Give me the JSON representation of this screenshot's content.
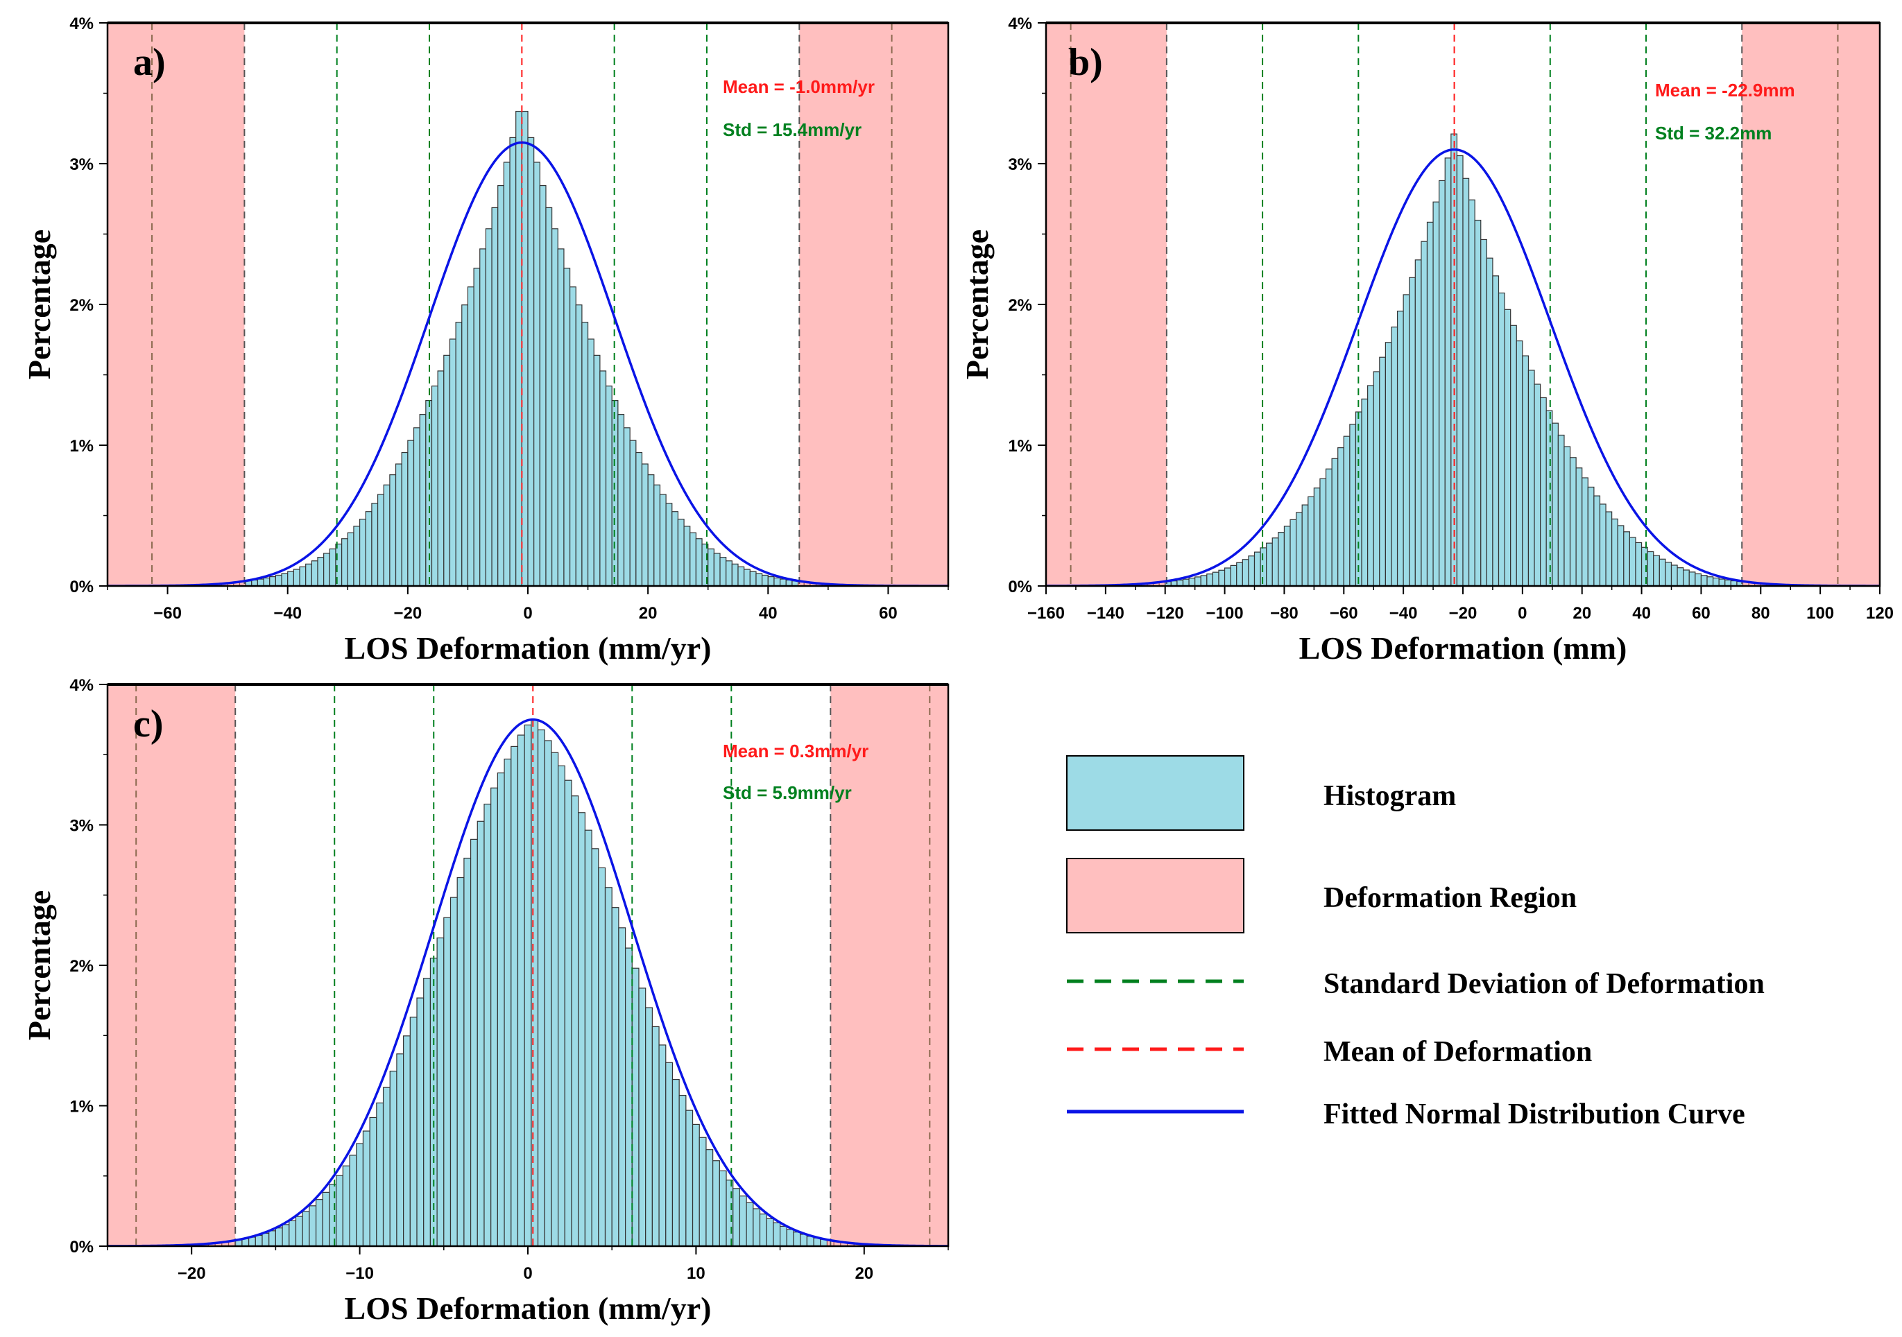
{
  "colors": {
    "histogram": "#9ddbe6",
    "histogram_edge": "#333333",
    "region": "#ffbfbf",
    "std_line": "#00801f",
    "mean_line": "#ff1a1a",
    "curve": "#0a14e6",
    "region_edge": "#8c6a50"
  },
  "legend": {
    "histogram": "Histogram",
    "region": "Deformation Region",
    "std": "Standard Deviation of Deformation",
    "mean": "Mean of Deformation",
    "curve": "Fitted Normal Distribution Curve"
  },
  "chart_data": [
    {
      "type": "bar",
      "panel": "a)",
      "xlabel": "LOS Deformation (mm/yr)",
      "ylabel": "Percentage",
      "xlim": [
        -70,
        70
      ],
      "ylim": [
        0,
        4
      ],
      "xticks": [
        -60,
        -40,
        -20,
        0,
        20,
        40,
        60
      ],
      "xtick_labels": [
        "−60",
        "−40",
        "−20",
        "0",
        "20",
        "40",
        "60"
      ],
      "yticks": [
        0,
        1,
        2,
        3,
        4
      ],
      "ytick_labels": [
        "0%",
        "1%",
        "2%",
        "3%",
        "4%"
      ],
      "mean": -1.0,
      "std": 15.4,
      "mean_text": "Mean = -1.0mm/yr",
      "std_text": "Std = 15.4mm/yr",
      "curve_peak": 3.15,
      "hist_peak": 3.47,
      "bin_width": 1.0,
      "region_bounds": [
        -47.2,
        45.2
      ],
      "sigma_lines": [
        -62.6,
        -47.2,
        -31.8,
        -16.4,
        14.4,
        29.8,
        45.2,
        60.6
      ]
    },
    {
      "type": "bar",
      "panel": "b)",
      "xlabel": "LOS Deformation (mm)",
      "ylabel": "Percentage",
      "xlim": [
        -160,
        120
      ],
      "ylim": [
        0,
        4
      ],
      "xticks": [
        -160,
        -140,
        -120,
        -100,
        -80,
        -60,
        -40,
        -20,
        0,
        20,
        40,
        60,
        80,
        100,
        120
      ],
      "xtick_labels": [
        "−160",
        "−140",
        "−120",
        "−100",
        "−80",
        "−60",
        "−40",
        "−20",
        "0",
        "20",
        "40",
        "60",
        "80",
        "100",
        "120"
      ],
      "yticks": [
        0,
        1,
        2,
        3,
        4
      ],
      "ytick_labels": [
        "0%",
        "1%",
        "2%",
        "3%",
        "4%"
      ],
      "mean": -22.9,
      "std": 32.2,
      "mean_text": "Mean = -22.9mm",
      "std_text": "Std = 32.2mm",
      "curve_peak": 3.1,
      "hist_peak": 3.22,
      "bin_width": 2.0,
      "region_bounds": [
        -119.5,
        73.7
      ],
      "sigma_lines": [
        -151.7,
        -119.5,
        -87.3,
        -55.1,
        9.3,
        41.5,
        73.7,
        105.9
      ]
    },
    {
      "type": "bar",
      "panel": "c)",
      "xlabel": "LOS Deformation (mm/yr)",
      "ylabel": "Percentage",
      "xlim": [
        -25,
        25
      ],
      "ylim": [
        0,
        4
      ],
      "xticks": [
        -20,
        -10,
        0,
        10,
        20
      ],
      "xtick_labels": [
        "−20",
        "−10",
        "0",
        "10",
        "20"
      ],
      "yticks": [
        0,
        1,
        2,
        3,
        4
      ],
      "ytick_labels": [
        "0%",
        "1%",
        "2%",
        "3%",
        "4%"
      ],
      "mean": 0.3,
      "std": 5.9,
      "mean_text": "Mean = 0.3mm/yr",
      "std_text": "Std = 5.9mm/yr",
      "curve_peak": 3.75,
      "hist_peak": 3.76,
      "bin_width": 0.4,
      "region_bounds": [
        -17.4,
        18.0
      ],
      "sigma_lines": [
        -23.3,
        -17.4,
        -11.5,
        -5.6,
        6.2,
        12.1,
        18.0,
        23.9
      ]
    }
  ]
}
